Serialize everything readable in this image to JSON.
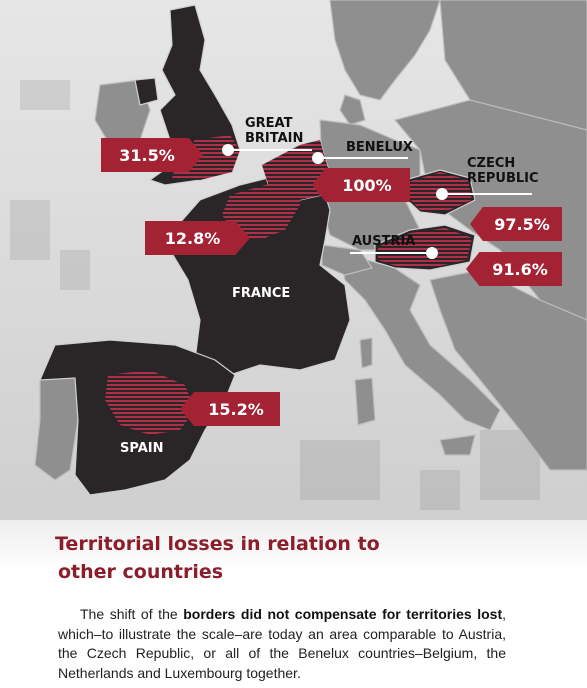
{
  "map": {
    "country_labels": {
      "great_britain": [
        "GREAT",
        "BRITAIN"
      ],
      "benelux": "BENELUX",
      "czech_republic": [
        "CZECH",
        "REPUBLIC"
      ],
      "austria": "AUSTRIA",
      "france": "FRANCE",
      "spain": "SPAIN"
    },
    "percentages": {
      "great_britain": "31.5%",
      "benelux": "100%",
      "czech_republic": "97.5%",
      "austria": "91.6%",
      "france": "12.8%",
      "spain": "15.2%"
    },
    "colors": {
      "highlight_fill": "#a32334",
      "highlighted_country": "#2a2526",
      "other_land": "#8f8f8f",
      "sea": "#d9d9d9"
    }
  },
  "article": {
    "heading_line1": "Territorial losses in relation to",
    "heading_line2": "other countries",
    "body_intro": "The shift of the ",
    "body_bold": "borders did not compensate for territories lost",
    "body_rest": ", which–to illustrate the scale–are today an area comparable to Austria, the Czech Republic, or all of the Benelux countries–Belgium, the Netherlands and Luxembourg together."
  }
}
